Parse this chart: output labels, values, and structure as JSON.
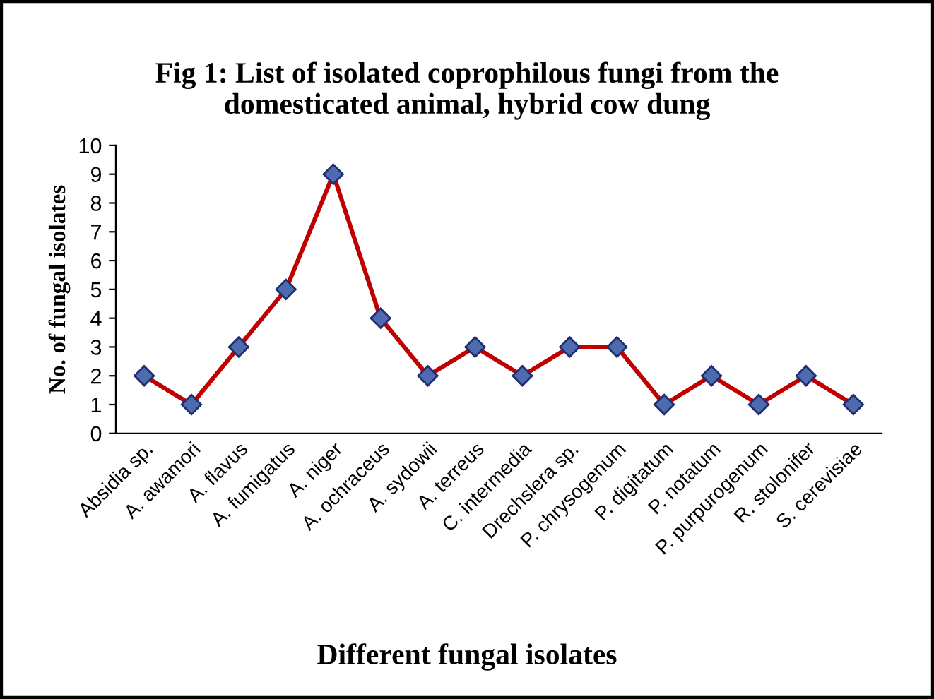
{
  "chart_data": {
    "type": "line",
    "title": "Fig 1: List of isolated coprophilous fungi from the\ndomesticated animal, hybrid cow dung",
    "xlabel": "Different fungal isolates",
    "ylabel": "No. of fungal isolates",
    "categories": [
      "Absidia sp.",
      "A. awamori",
      "A. flavus",
      "A. fumigatus",
      "A. niger",
      "A. ochraceus",
      "A. sydowii",
      "A. terreus",
      "C. intermedia",
      "Drechslera sp.",
      "P. chrysogenum",
      "P. digitatum",
      "P. notatum",
      "P. purpurogenum",
      "R. stolonifer",
      "S. cerevisiae"
    ],
    "series": [
      {
        "color": "#c00000",
        "values": [
          2,
          1,
          3,
          5,
          9,
          4,
          2,
          3,
          2,
          3,
          3,
          1,
          2,
          1,
          2,
          1
        ]
      }
    ],
    "marker": "diamond",
    "line_style": "solid",
    "ylim": [
      0,
      10
    ],
    "yticks": [
      0,
      1,
      2,
      3,
      4,
      5,
      6,
      7,
      8,
      9,
      10
    ],
    "grid": false,
    "legend": false
  }
}
